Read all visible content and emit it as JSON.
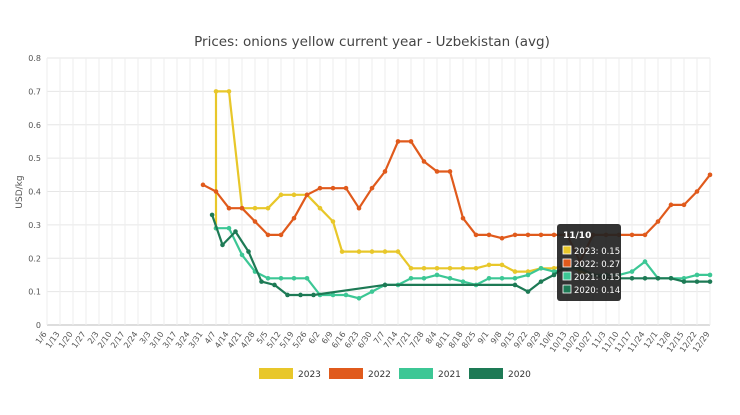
{
  "chart_data": {
    "type": "line",
    "title": "Prices: onions yellow current year - Uzbekistan (avg)",
    "ylabel": "USD/kg",
    "xlabel": "",
    "ylim": [
      0,
      0.8
    ],
    "yticks": [
      "0",
      "0.1",
      "0.2",
      "0.3",
      "0.4",
      "0.5",
      "0.6",
      "0.7",
      "0.8"
    ],
    "grid": true,
    "legend": "bottom",
    "categories": [
      "1/6",
      "1/13",
      "1/20",
      "1/27",
      "2/3",
      "2/10",
      "2/17",
      "2/24",
      "3/3",
      "3/10",
      "3/17",
      "3/24",
      "3/31",
      "4/7",
      "4/14",
      "4/21",
      "4/28",
      "5/5",
      "5/12",
      "5/19",
      "5/26",
      "6/2",
      "6/9",
      "6/16",
      "6/23",
      "6/30",
      "7/7",
      "7/14",
      "7/21",
      "7/28",
      "8/4",
      "8/11",
      "8/18",
      "8/25",
      "9/1",
      "9/8",
      "9/15",
      "9/22",
      "9/29",
      "10/6",
      "10/13",
      "10/20",
      "10/27",
      "11/3",
      "11/10",
      "11/17",
      "11/24",
      "12/1",
      "12/8",
      "12/15",
      "12/22",
      "12/29"
    ],
    "series": [
      {
        "name": "2023",
        "color": "#e8c72a",
        "points": [
          [
            13,
            0.29
          ],
          [
            13,
            0.7
          ],
          [
            14,
            0.7
          ],
          [
            15,
            0.35
          ],
          [
            16,
            0.35
          ],
          [
            17,
            0.35
          ],
          [
            18,
            0.39
          ],
          [
            19,
            0.39
          ],
          [
            20,
            0.39
          ],
          [
            21,
            0.35
          ],
          [
            22,
            0.31
          ],
          [
            22.7,
            0.22
          ],
          [
            24,
            0.22
          ],
          [
            25,
            0.22
          ],
          [
            26,
            0.22
          ],
          [
            27,
            0.22
          ],
          [
            28,
            0.17
          ],
          [
            29,
            0.17
          ],
          [
            30,
            0.17
          ],
          [
            31,
            0.17
          ],
          [
            32,
            0.17
          ],
          [
            33,
            0.17
          ],
          [
            34,
            0.18
          ],
          [
            35,
            0.18
          ],
          [
            36,
            0.16
          ],
          [
            37,
            0.16
          ],
          [
            38,
            0.17
          ],
          [
            39,
            0.17
          ],
          [
            40,
            0.18
          ],
          [
            41,
            0.16
          ],
          [
            42,
            0.15
          ],
          [
            43,
            0.15
          ],
          [
            44,
            0.15
          ]
        ]
      },
      {
        "name": "2022",
        "color": "#e05a1c",
        "points": [
          [
            12,
            0.42
          ],
          [
            13,
            0.4
          ],
          [
            14,
            0.35
          ],
          [
            15,
            0.35
          ],
          [
            16,
            0.31
          ],
          [
            17,
            0.27
          ],
          [
            18,
            0.27
          ],
          [
            19,
            0.32
          ],
          [
            20,
            0.39
          ],
          [
            21,
            0.41
          ],
          [
            22,
            0.41
          ],
          [
            23,
            0.41
          ],
          [
            24,
            0.35
          ],
          [
            25,
            0.41
          ],
          [
            26,
            0.46
          ],
          [
            27,
            0.55
          ],
          [
            28,
            0.55
          ],
          [
            29,
            0.49
          ],
          [
            30,
            0.46
          ],
          [
            31,
            0.46
          ],
          [
            32,
            0.32
          ],
          [
            33,
            0.27
          ],
          [
            34,
            0.27
          ],
          [
            35,
            0.26
          ],
          [
            36,
            0.27
          ],
          [
            37,
            0.27
          ],
          [
            38,
            0.27
          ],
          [
            39,
            0.27
          ],
          [
            40,
            0.27
          ],
          [
            41,
            0.19
          ],
          [
            42,
            0.27
          ],
          [
            43,
            0.27
          ],
          [
            44,
            0.27
          ],
          [
            45,
            0.27
          ],
          [
            46,
            0.27
          ],
          [
            47,
            0.31
          ],
          [
            48,
            0.36
          ],
          [
            49,
            0.36
          ],
          [
            50,
            0.4
          ],
          [
            51,
            0.45
          ]
        ]
      },
      {
        "name": "2021",
        "color": "#3cc795",
        "points": [
          [
            13,
            0.29
          ],
          [
            14,
            0.29
          ],
          [
            15,
            0.21
          ],
          [
            16,
            0.16
          ],
          [
            17,
            0.14
          ],
          [
            18,
            0.14
          ],
          [
            19,
            0.14
          ],
          [
            20,
            0.14
          ],
          [
            21,
            0.09
          ],
          [
            22,
            0.09
          ],
          [
            23,
            0.09
          ],
          [
            24,
            0.08
          ],
          [
            25,
            0.1
          ],
          [
            26,
            0.12
          ],
          [
            27,
            0.12
          ],
          [
            28,
            0.14
          ],
          [
            29,
            0.14
          ],
          [
            30,
            0.15
          ],
          [
            31,
            0.14
          ],
          [
            32,
            0.13
          ],
          [
            33,
            0.12
          ],
          [
            34,
            0.14
          ],
          [
            35,
            0.14
          ],
          [
            36,
            0.14
          ],
          [
            37,
            0.15
          ],
          [
            38,
            0.17
          ],
          [
            39,
            0.16
          ],
          [
            40,
            0.17
          ],
          [
            41,
            0.17
          ],
          [
            42,
            0.15
          ],
          [
            43,
            0.15
          ],
          [
            44,
            0.15
          ],
          [
            45,
            0.16
          ],
          [
            46,
            0.19
          ],
          [
            47,
            0.14
          ],
          [
            48,
            0.14
          ],
          [
            49,
            0.14
          ],
          [
            50,
            0.15
          ],
          [
            51,
            0.15
          ]
        ]
      },
      {
        "name": "2020",
        "color": "#1d7a55",
        "points": [
          [
            12.7,
            0.33
          ],
          [
            13.5,
            0.24
          ],
          [
            14.5,
            0.28
          ],
          [
            15.5,
            0.22
          ],
          [
            16.5,
            0.13
          ],
          [
            17.5,
            0.12
          ],
          [
            18.5,
            0.09
          ],
          [
            19.5,
            0.09
          ],
          [
            20.5,
            0.09
          ],
          [
            26,
            0.12
          ],
          [
            36,
            0.12
          ],
          [
            37,
            0.1
          ],
          [
            38,
            0.13
          ],
          [
            39,
            0.15
          ],
          [
            40,
            0.18
          ],
          [
            41,
            0.17
          ],
          [
            42,
            0.15
          ],
          [
            43,
            0.14
          ],
          [
            44,
            0.14
          ],
          [
            45,
            0.14
          ],
          [
            46,
            0.14
          ],
          [
            47,
            0.14
          ],
          [
            48,
            0.14
          ],
          [
            49,
            0.13
          ],
          [
            50,
            0.13
          ],
          [
            51,
            0.13
          ]
        ]
      }
    ],
    "tooltip": {
      "title": "11/10",
      "lines": [
        "2023: 0.15",
        "2022: 0.27",
        "2021: 0.15",
        "2020: 0.14"
      ]
    }
  }
}
